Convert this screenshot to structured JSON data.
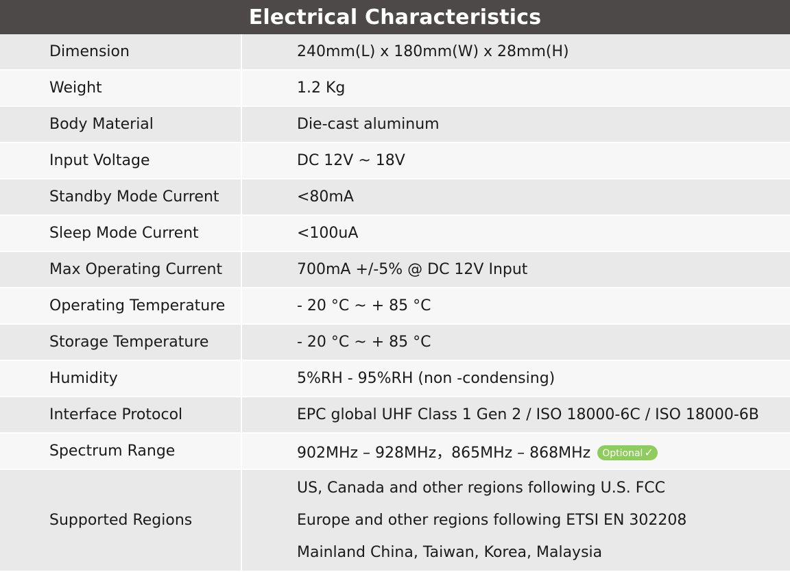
{
  "table": {
    "title": "Electrical Characteristics",
    "rows": [
      {
        "label": "Dimension",
        "value": "240mm(L) x 180mm(W) x 28mm(H)"
      },
      {
        "label": "Weight",
        "value": "1.2 Kg"
      },
      {
        "label": "Body Material",
        "value": "Die-cast aluminum"
      },
      {
        "label": "Input Voltage",
        "value": "DC 12V ~ 18V"
      },
      {
        "label": "Standby Mode Current",
        "value": "<80mA"
      },
      {
        "label": "Sleep Mode Current",
        "value": "<100uA"
      },
      {
        "label": "Max Operating Current",
        "value": "700mA +/-5% @ DC 12V Input"
      },
      {
        "label": "Operating Temperature",
        "value": "- 20 °C ~ + 85 °C"
      },
      {
        "label": "Storage Temperature",
        "value": "- 20 °C ~ + 85 °C"
      },
      {
        "label": "Humidity",
        "value": "5%RH - 95%RH (non -condensing)"
      },
      {
        "label": "Interface Protocol",
        "value": "EPC global UHF Class 1 Gen 2 / ISO 18000-6C / ISO 18000-6B"
      },
      {
        "label": "Spectrum Range",
        "value": "902MHz – 928MHz，865MHz – 868MHz",
        "badge": "Optional",
        "badge_icon": "check-icon"
      }
    ],
    "regions": {
      "label": "Supported Regions",
      "lines": [
        "US, Canada and other regions following U.S. FCC",
        "Europe and other regions following ETSI EN 302208",
        "Mainland China, Taiwan, Korea, Malaysia"
      ]
    }
  },
  "colors": {
    "header_bg": "#4d4948",
    "header_text": "#ffffff",
    "row_shade": "#e9e9e9",
    "row_plain": "#f7f7f7",
    "badge_bg": "#8fcc5e"
  }
}
